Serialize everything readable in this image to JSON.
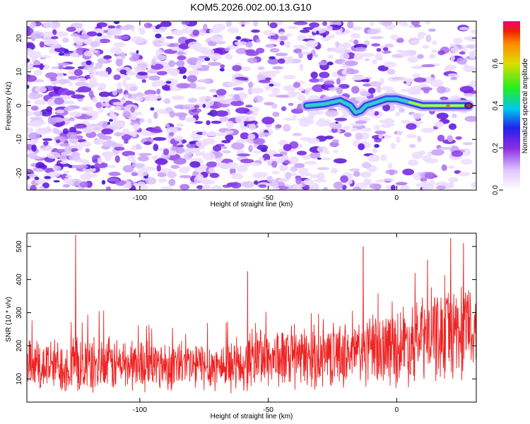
{
  "title": "KOM5.2026.002.00.13.G10",
  "colors": {
    "snr_line": "#ee2222",
    "track_outer": "#3344ee",
    "track_mid": "#33cccc",
    "track_hot": "#cc3300"
  },
  "chart_data": [
    {
      "type": "heatmap",
      "name": "spectrogram",
      "xlabel": "Height of straight line (km)",
      "ylabel": "Frequency (Hz)",
      "xlim": [
        -144,
        31
      ],
      "ylim": [
        -25,
        25
      ],
      "xticks": [
        -100,
        -50,
        0
      ],
      "yticks": [
        -20,
        -10,
        0,
        10,
        20
      ],
      "colorbar": {
        "label": "Normalized spectral amplitude",
        "range": [
          0.0,
          0.8
        ],
        "ticks": [
          0.0,
          0.2,
          0.4,
          0.6
        ]
      },
      "signal_track": {
        "x": [
          -35,
          -28,
          -22,
          -18,
          -16,
          -14,
          -12,
          -8,
          -4,
          0,
          5,
          10,
          15,
          20,
          25,
          28
        ],
        "y": [
          0,
          0.5,
          1.5,
          0,
          -2,
          -1.5,
          0,
          1,
          2,
          2,
          1,
          0,
          0,
          0,
          0,
          0
        ],
        "peak_amplitude_x": 28
      }
    },
    {
      "type": "line",
      "name": "snr",
      "xlabel": "Height of straight line (km)",
      "ylabel": "SNR (10 * v/v)",
      "xlim": [
        -144,
        31
      ],
      "ylim": [
        30,
        540
      ],
      "xticks": [
        -100,
        -50,
        0
      ],
      "yticks": [
        100,
        200,
        300,
        400,
        500
      ],
      "trend": {
        "x": [
          -144,
          -120,
          -100,
          -80,
          -60,
          -55,
          -50,
          -40,
          -20,
          -10,
          0,
          10,
          20,
          31
        ],
        "mean": [
          140,
          140,
          145,
          140,
          138,
          175,
          165,
          160,
          175,
          185,
          200,
          220,
          240,
          250
        ],
        "spread": [
          70,
          75,
          70,
          65,
          65,
          90,
          80,
          80,
          85,
          95,
          105,
          115,
          125,
          130
        ]
      },
      "peaks": [
        {
          "x": -125,
          "y": 535
        },
        {
          "x": -58,
          "y": 425
        },
        {
          "x": -13,
          "y": 500
        },
        {
          "x": 12,
          "y": 460
        },
        {
          "x": 21,
          "y": 525
        },
        {
          "x": 26,
          "y": 510
        }
      ]
    }
  ]
}
